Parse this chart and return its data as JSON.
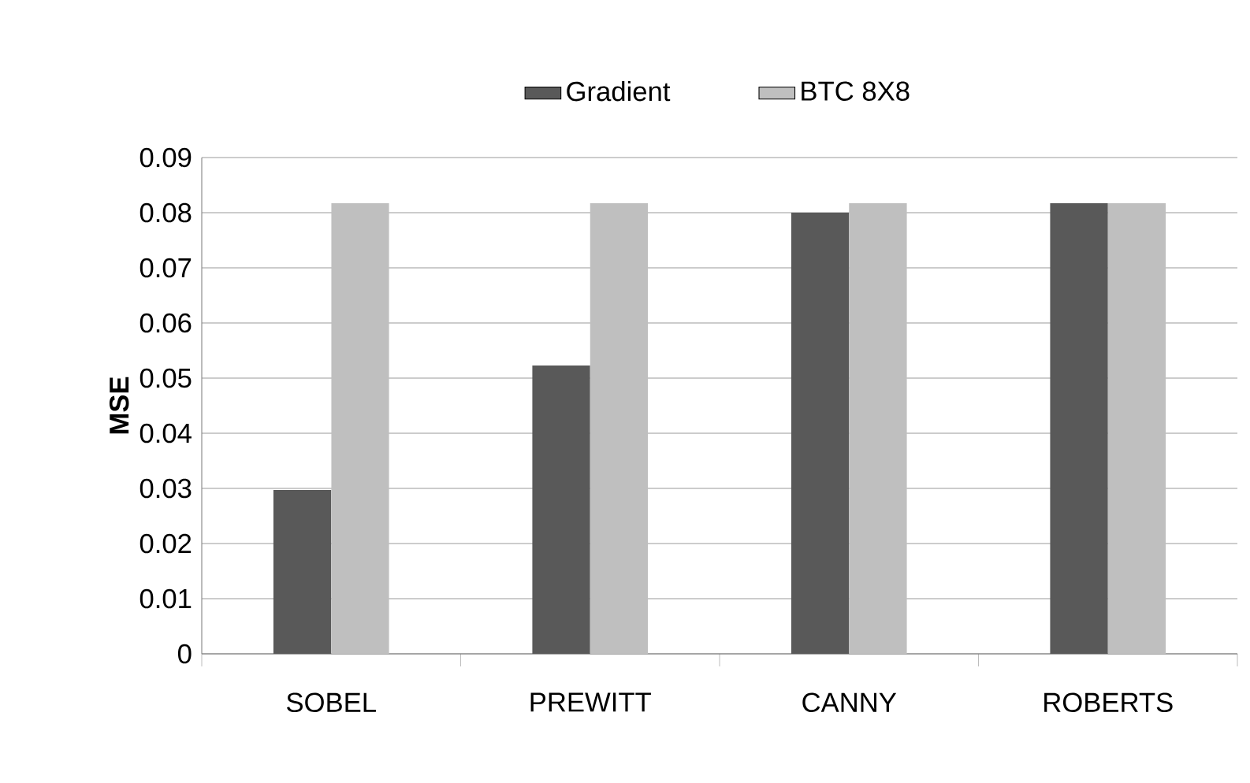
{
  "chart_data": {
    "type": "bar",
    "ylabel": "MSE",
    "categories": [
      "SOBEL",
      "PREWITT",
      "CANNY",
      "ROBERTS"
    ],
    "series": [
      {
        "name": "Gradient",
        "color": "#595959",
        "values": [
          0.0297,
          0.0523,
          0.08,
          0.0817
        ]
      },
      {
        "name": "BTC 8X8",
        "color": "#bfbfbf",
        "values": [
          0.0817,
          0.0817,
          0.0817,
          0.0817
        ]
      }
    ],
    "ylim": [
      0,
      0.09
    ],
    "yticks": [
      0,
      0.01,
      0.02,
      0.03,
      0.04,
      0.05,
      0.06,
      0.07,
      0.08,
      0.09
    ],
    "grid": "y",
    "legend": "top"
  }
}
